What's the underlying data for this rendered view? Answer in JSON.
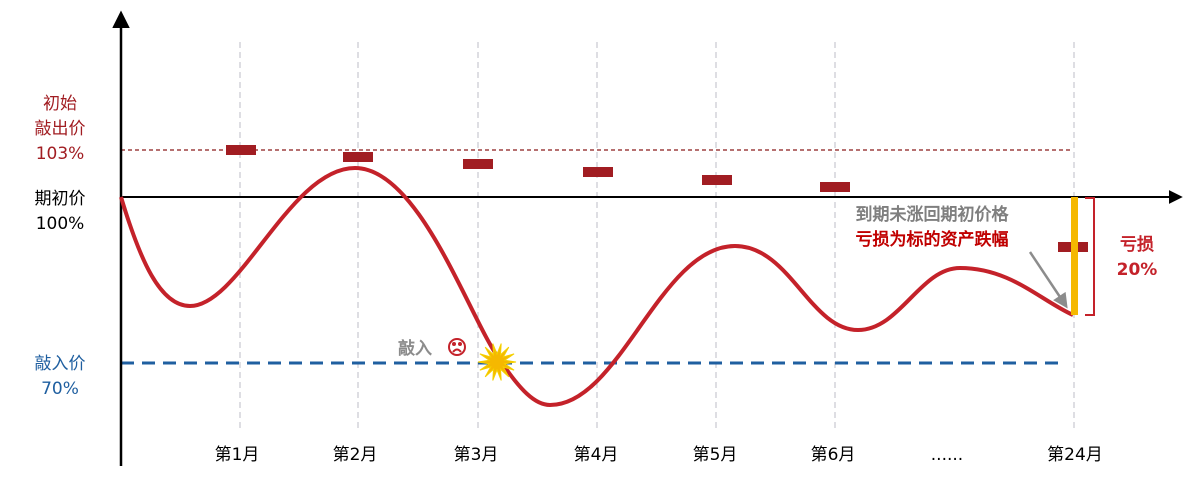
{
  "y_labels": {
    "knock_out": [
      "初始",
      "敲出价",
      "103%"
    ],
    "initial": [
      "期初价",
      "100%"
    ],
    "knock_in": [
      "敲入价",
      "70%"
    ]
  },
  "x_labels": [
    "第1月",
    "第2月",
    "第3月",
    "第4月",
    "第5月",
    "第6月",
    "......",
    "第24月"
  ],
  "annotations": {
    "knock_in_event": "敲入",
    "maturity_note": "到期未涨回期初价格",
    "loss_note": "亏损为标的资产跌幅",
    "loss_label": "亏损",
    "loss_value": "20%"
  }
}
